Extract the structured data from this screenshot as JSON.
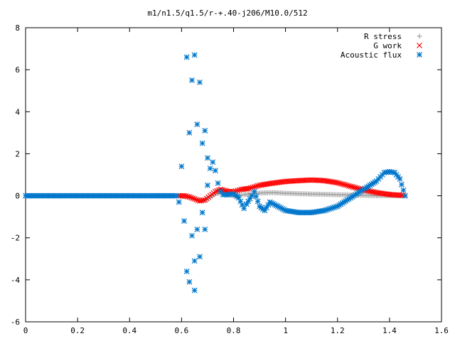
{
  "chart_data": {
    "type": "scatter",
    "title": "m1/n1.5/q1.5/r-+.40-j206/M10.0/512",
    "xlabel": "",
    "ylabel": "",
    "xlim": [
      0,
      1.6
    ],
    "ylim": [
      -6,
      8
    ],
    "xticks": [
      0,
      0.2,
      0.4,
      0.6,
      0.8,
      1,
      1.2,
      1.4,
      1.6
    ],
    "xtick_labels": [
      "0",
      "0.2",
      "0.4",
      "0.6",
      "0.8",
      "1",
      "1.2",
      "1.4",
      "1.6"
    ],
    "yticks": [
      -6,
      -4,
      -2,
      0,
      2,
      4,
      6,
      8
    ],
    "ytick_labels": [
      "-6",
      "-4",
      "-2",
      "0",
      "2",
      "4",
      "6",
      "8"
    ],
    "grid": false,
    "legend_position": "top-right",
    "series": [
      {
        "name": "R stress",
        "marker": "plus",
        "color": "#a0a0a0",
        "points": [
          [
            0.59,
            0.0
          ],
          [
            0.61,
            -0.03
          ],
          [
            0.63,
            -0.08
          ],
          [
            0.65,
            -0.15
          ],
          [
            0.67,
            -0.22
          ],
          [
            0.69,
            -0.2
          ],
          [
            0.71,
            -0.05
          ],
          [
            0.73,
            0.1
          ],
          [
            0.75,
            0.12
          ],
          [
            0.78,
            0.05
          ],
          [
            0.81,
            0.0
          ],
          [
            0.84,
            0.05
          ],
          [
            0.87,
            0.1
          ],
          [
            0.9,
            0.13
          ],
          [
            0.95,
            0.15
          ],
          [
            1.0,
            0.12
          ],
          [
            1.05,
            0.1
          ],
          [
            1.1,
            0.08
          ],
          [
            1.15,
            0.07
          ],
          [
            1.2,
            0.05
          ],
          [
            1.25,
            0.04
          ],
          [
            1.3,
            0.02
          ],
          [
            1.35,
            0.0
          ],
          [
            1.4,
            0.0
          ],
          [
            1.45,
            0.0
          ],
          [
            1.46,
            0.0
          ]
        ]
      },
      {
        "name": "G work",
        "marker": "cross",
        "color": "#ff0000",
        "points": [
          [
            0.59,
            0.0
          ],
          [
            0.61,
            0.0
          ],
          [
            0.63,
            -0.05
          ],
          [
            0.65,
            -0.15
          ],
          [
            0.67,
            -0.25
          ],
          [
            0.69,
            -0.2
          ],
          [
            0.71,
            0.0
          ],
          [
            0.73,
            0.2
          ],
          [
            0.75,
            0.3
          ],
          [
            0.78,
            0.2
          ],
          [
            0.8,
            0.2
          ],
          [
            0.83,
            0.3
          ],
          [
            0.86,
            0.35
          ],
          [
            0.9,
            0.5
          ],
          [
            0.95,
            0.6
          ],
          [
            1.0,
            0.68
          ],
          [
            1.05,
            0.72
          ],
          [
            1.1,
            0.75
          ],
          [
            1.15,
            0.72
          ],
          [
            1.2,
            0.62
          ],
          [
            1.25,
            0.45
          ],
          [
            1.3,
            0.28
          ],
          [
            1.35,
            0.15
          ],
          [
            1.4,
            0.06
          ],
          [
            1.45,
            0.02
          ],
          [
            1.46,
            0.0
          ]
        ]
      },
      {
        "name": "Acoustic flux",
        "marker": "star",
        "color": "#0077cc",
        "points": [
          [
            0.0,
            0.0
          ],
          [
            0.1,
            0.0
          ],
          [
            0.2,
            0.0
          ],
          [
            0.3,
            0.0
          ],
          [
            0.4,
            0.0
          ],
          [
            0.5,
            0.0
          ],
          [
            0.58,
            0.0
          ],
          [
            0.59,
            -0.3
          ],
          [
            0.6,
            1.4
          ],
          [
            0.61,
            -1.2
          ],
          [
            0.62,
            6.6
          ],
          [
            0.62,
            -3.6
          ],
          [
            0.63,
            3.0
          ],
          [
            0.63,
            -4.1
          ],
          [
            0.64,
            -1.9
          ],
          [
            0.64,
            5.5
          ],
          [
            0.65,
            6.7
          ],
          [
            0.65,
            -3.1
          ],
          [
            0.65,
            -4.5
          ],
          [
            0.66,
            3.4
          ],
          [
            0.66,
            -1.6
          ],
          [
            0.67,
            5.4
          ],
          [
            0.67,
            -2.9
          ],
          [
            0.68,
            2.5
          ],
          [
            0.68,
            -0.8
          ],
          [
            0.69,
            3.1
          ],
          [
            0.69,
            -1.6
          ],
          [
            0.7,
            1.8
          ],
          [
            0.7,
            0.5
          ],
          [
            0.71,
            1.3
          ],
          [
            0.72,
            1.6
          ],
          [
            0.73,
            1.2
          ],
          [
            0.74,
            0.6
          ],
          [
            0.75,
            0.2
          ],
          [
            0.76,
            0.05
          ],
          [
            0.78,
            0.05
          ],
          [
            0.8,
            0.1
          ],
          [
            0.82,
            -0.1
          ],
          [
            0.84,
            -0.6
          ],
          [
            0.85,
            -0.4
          ],
          [
            0.87,
            0.0
          ],
          [
            0.88,
            0.2
          ],
          [
            0.9,
            -0.5
          ],
          [
            0.92,
            -0.7
          ],
          [
            0.94,
            -0.3
          ],
          [
            0.97,
            -0.5
          ],
          [
            1.0,
            -0.7
          ],
          [
            1.05,
            -0.8
          ],
          [
            1.1,
            -0.8
          ],
          [
            1.15,
            -0.7
          ],
          [
            1.2,
            -0.5
          ],
          [
            1.25,
            -0.1
          ],
          [
            1.3,
            0.3
          ],
          [
            1.35,
            0.7
          ],
          [
            1.38,
            1.1
          ],
          [
            1.4,
            1.15
          ],
          [
            1.42,
            1.1
          ],
          [
            1.44,
            0.8
          ],
          [
            1.46,
            0.0
          ]
        ]
      }
    ]
  }
}
